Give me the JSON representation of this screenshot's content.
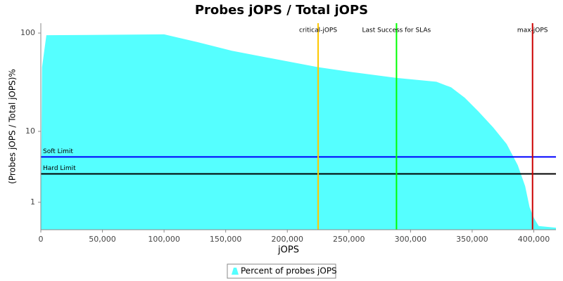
{
  "chart_data": {
    "type": "area",
    "title": "Probes jOPS / Total jOPS",
    "x_label": "jOPS",
    "y_label": "(Probes jOPS / Total jOPS)%",
    "yscale": "log",
    "x": [
      0,
      1000,
      4500,
      100000,
      127000,
      155000,
      195000,
      225000,
      253000,
      288600,
      321000,
      333000,
      344000,
      355000,
      367000,
      378000,
      387000,
      393000,
      396600,
      400000,
      404000,
      418000
    ],
    "series": [
      {
        "name": "Percent of probes jOPS",
        "color": "#55ffff",
        "values": [
          0,
          45,
          95,
          97,
          81,
          66,
          53,
          45,
          40,
          35,
          32,
          28,
          22,
          16,
          11,
          7.15,
          3.93,
          1.97,
          0.77,
          0.36,
          0.1,
          0.055
        ]
      }
    ],
    "xlim": [
      0,
      418000
    ],
    "ylim": [
      0,
      126
    ],
    "xticks": [
      0,
      {
        "value": 50000,
        "label": "50,000"
      },
      {
        "value": 100000,
        "label": "100,000"
      },
      {
        "value": 150000,
        "label": "150,000"
      },
      {
        "value": 200000,
        "label": "200,000"
      },
      {
        "value": 250000,
        "label": "250,000"
      },
      {
        "value": 300000,
        "label": "300,000"
      },
      {
        "value": 350000,
        "label": "350,000"
      },
      {
        "value": 400000,
        "label": "400,000"
      }
    ],
    "yticks": [
      1,
      10,
      100
    ],
    "markers": [
      {
        "axis": "y",
        "value": 5,
        "label": "Soft Limit",
        "color": "#0000ff"
      },
      {
        "axis": "y",
        "value": 3,
        "label": "Hard Limit",
        "color": "#000000"
      },
      {
        "axis": "x",
        "value": 225000,
        "label": "critical-jOPS",
        "color": "#ffc800"
      },
      {
        "axis": "x",
        "value": 288600,
        "label": "Last Success for SLAs",
        "color": "#00ff00"
      },
      {
        "axis": "x",
        "value": 399000,
        "label": "max-jOPS",
        "color": "#cc0000"
      }
    ],
    "legend": "bottom"
  }
}
